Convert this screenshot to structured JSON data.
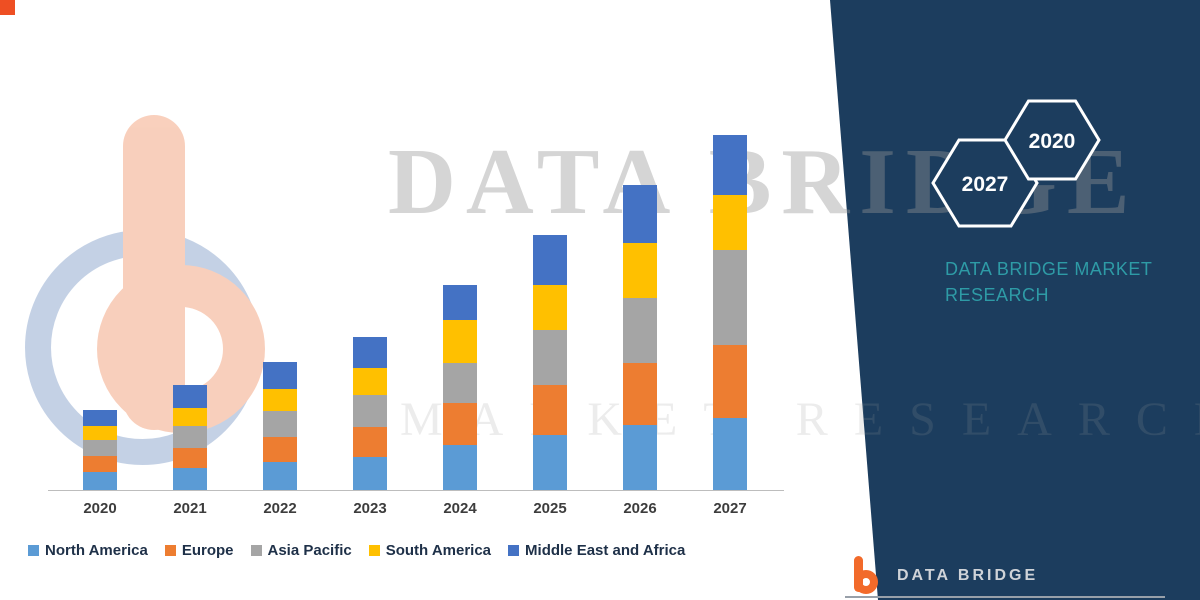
{
  "page": {
    "background": "#ffffff",
    "panel_navy": "#1c3d5e",
    "accent_teal": "#2e9ba6",
    "corner_square_color": "#ee4f23"
  },
  "watermark": {
    "line1": "DATA BRIDGE",
    "line2": "MARKET RESEARCH",
    "logo_icon": "data-bridge-db-logo"
  },
  "brand_panel": {
    "hexagons": [
      {
        "label": "2027"
      },
      {
        "label": "2020"
      }
    ],
    "title": "DATA BRIDGE MARKET RESEARCH"
  },
  "footer": {
    "logo_icon": "data-bridge-db-logo",
    "brand_text": "DATA BRIDGE"
  },
  "chart_data": {
    "type": "bar",
    "stacked": true,
    "title": "",
    "xlabel": "",
    "ylabel": "",
    "categories": [
      "2020",
      "2021",
      "2022",
      "2023",
      "2024",
      "2025",
      "2026",
      "2027"
    ],
    "series": [
      {
        "name": "North America",
        "color": "#5B9BD5",
        "values": [
          18,
          22,
          28,
          33,
          45,
          55,
          65,
          72
        ]
      },
      {
        "name": "Europe",
        "color": "#ED7D31",
        "values": [
          16,
          20,
          25,
          30,
          42,
          50,
          62,
          73
        ]
      },
      {
        "name": "Asia Pacific",
        "color": "#A5A5A5",
        "values": [
          16,
          22,
          26,
          32,
          40,
          55,
          65,
          95
        ]
      },
      {
        "name": "South America",
        "color": "#FFC000",
        "values": [
          14,
          18,
          22,
          27,
          43,
          45,
          55,
          55
        ]
      },
      {
        "name": "Middle East and Africa",
        "color": "#4472C4",
        "values": [
          16,
          23,
          27,
          31,
          35,
          50,
          58,
          60
        ]
      }
    ],
    "value_axis": {
      "visible": false,
      "range_estimate": [
        0,
        370
      ],
      "units": "relative (no value axis shown)"
    },
    "legend_position": "bottom",
    "grid": false
  }
}
